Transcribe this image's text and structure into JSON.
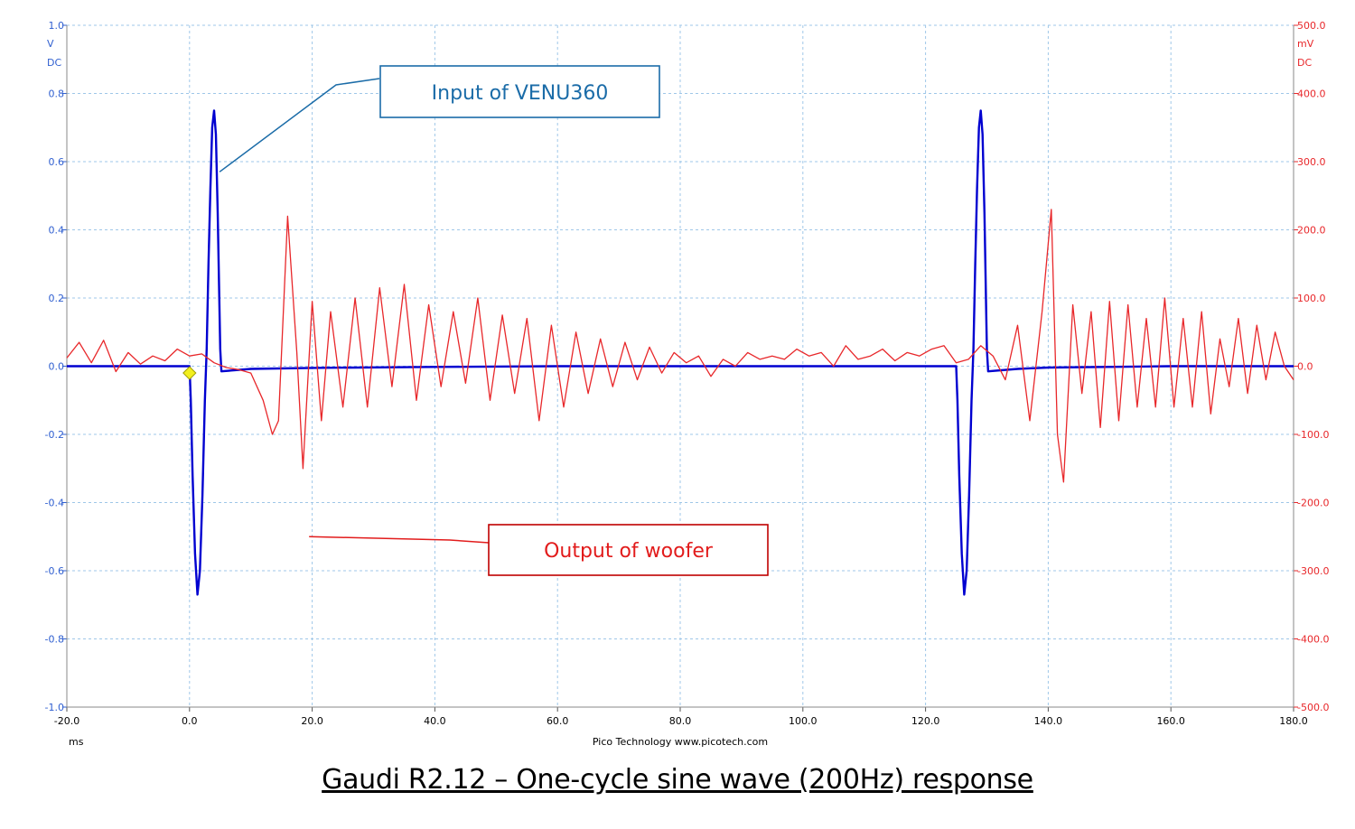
{
  "chart_data": {
    "type": "line",
    "x_axis": {
      "range": [
        -20,
        180
      ],
      "ticks": [
        -20,
        0,
        20,
        40,
        60,
        80,
        100,
        120,
        140,
        160,
        180
      ],
      "tick_labels": [
        "-20.0",
        "0.0",
        "20.0",
        "40.0",
        "60.0",
        "80.0",
        "100.0",
        "120.0",
        "140.0",
        "160.0",
        "180.0"
      ],
      "unit_label": "ms",
      "grid": true
    },
    "y_left": {
      "range": [
        -1.0,
        1.0
      ],
      "ticks": [
        1.0,
        0.8,
        0.6,
        0.4,
        0.2,
        0.0,
        -0.2,
        -0.4,
        -0.6,
        -0.8,
        -1.0
      ],
      "tick_labels": [
        "1.0",
        "0.8",
        "0.6",
        "0.4",
        "0.2",
        "0.0",
        "-0.2",
        "-0.4",
        "-0.6",
        "-0.8",
        "-1.0"
      ],
      "unit_label": "V",
      "coupling_label": "DC",
      "color": "#2f5fd0"
    },
    "y_right": {
      "range": [
        -500,
        500
      ],
      "ticks": [
        500,
        400,
        300,
        200,
        100,
        0,
        -100,
        -200,
        -300,
        -400,
        -500
      ],
      "tick_labels": [
        "500.0",
        "400.0",
        "300.0",
        "200.0",
        "100.0",
        "0.0",
        "-100.0",
        "-200.0",
        "-300.0",
        "-400.0",
        "-500.0"
      ],
      "unit_label": "mV",
      "coupling_label": "DC",
      "color": "#e8272a"
    },
    "footer_text": "Pico Technology   www.picotech.com",
    "trigger_marker": {
      "x": 0,
      "y": -0.02
    },
    "series": [
      {
        "axis": "left",
        "color": "#0000d0",
        "x": [
          -20,
          0,
          0.2,
          0.5,
          0.9,
          1.3,
          1.7,
          2.1,
          2.5,
          2.8,
          3.1,
          3.4,
          3.7,
          4.0,
          4.3,
          4.6,
          4.9,
          5.0,
          5.2,
          10,
          20,
          40,
          60,
          80,
          100,
          125,
          125.2,
          125.5,
          125.9,
          126.3,
          126.7,
          127.1,
          127.5,
          127.8,
          128.1,
          128.4,
          128.7,
          129.0,
          129.3,
          129.6,
          129.9,
          130.0,
          130.2,
          135,
          140,
          160,
          180
        ],
        "y": [
          0,
          0,
          -0.1,
          -0.32,
          -0.55,
          -0.67,
          -0.6,
          -0.38,
          -0.1,
          0.05,
          0.3,
          0.52,
          0.7,
          0.75,
          0.68,
          0.45,
          0.15,
          0.05,
          -0.015,
          -0.008,
          -0.005,
          -0.002,
          0,
          0,
          0,
          0,
          -0.1,
          -0.32,
          -0.55,
          -0.67,
          -0.6,
          -0.38,
          -0.1,
          0.05,
          0.3,
          0.52,
          0.7,
          0.75,
          0.68,
          0.45,
          0.15,
          0.05,
          -0.015,
          -0.008,
          -0.004,
          0,
          0
        ]
      },
      {
        "axis": "right",
        "color": "#e8272a",
        "x": [
          -20,
          -18,
          -16,
          -14,
          -12,
          -10,
          -8,
          -6,
          -4,
          -2,
          0,
          2,
          4,
          6,
          8,
          10,
          12,
          13.5,
          14.5,
          16,
          17.5,
          18.5,
          20,
          21.5,
          23,
          25,
          27,
          29,
          31,
          33,
          35,
          37,
          39,
          41,
          43,
          45,
          47,
          49,
          51,
          53,
          55,
          57,
          59,
          61,
          63,
          65,
          67,
          69,
          71,
          73,
          75,
          77,
          79,
          81,
          83,
          85,
          87,
          89,
          91,
          93,
          95,
          97,
          99,
          101,
          103,
          105,
          107,
          109,
          111,
          113,
          115,
          117,
          119,
          121,
          123,
          125,
          127,
          129,
          131,
          133,
          135,
          137,
          139,
          140.5,
          141.5,
          142.5,
          144,
          145.5,
          147,
          148.5,
          150,
          151.5,
          153,
          154.5,
          156,
          157.5,
          159,
          160.5,
          162,
          163.5,
          165,
          166.5,
          168,
          169.5,
          171,
          172.5,
          174,
          175.5,
          177,
          178.5,
          180
        ],
        "y": [
          12,
          35,
          5,
          38,
          -8,
          20,
          3,
          15,
          8,
          25,
          15,
          18,
          5,
          -2,
          -5,
          -10,
          -50,
          -100,
          -80,
          220,
          20,
          -150,
          95,
          -80,
          80,
          -60,
          100,
          -60,
          115,
          -30,
          120,
          -50,
          90,
          -30,
          80,
          -25,
          100,
          -50,
          75,
          -40,
          70,
          -80,
          60,
          -60,
          50,
          -40,
          40,
          -30,
          35,
          -20,
          28,
          -10,
          20,
          5,
          15,
          -15,
          10,
          0,
          20,
          10,
          15,
          10,
          25,
          15,
          20,
          0,
          30,
          10,
          15,
          25,
          8,
          20,
          15,
          25,
          30,
          5,
          10,
          30,
          15,
          -20,
          60,
          -80,
          80,
          230,
          -100,
          -170,
          90,
          -40,
          80,
          -90,
          95,
          -80,
          90,
          -60,
          70,
          -60,
          100,
          -60,
          70,
          -60,
          80,
          -70,
          40,
          -30,
          70,
          -40,
          60,
          -20,
          50,
          0,
          -20
        ]
      }
    ],
    "annotations": [
      {
        "text": "Input of VENU360",
        "color": "#1b6ca8",
        "line_color": "#1b6ca8",
        "box_border": "#1b6ca8",
        "points_to": {
          "series": 0,
          "x": 4.9,
          "y": 0.57
        }
      },
      {
        "text": "Output of woofer",
        "color": "#e21c1c",
        "line_color": "#e21c1c",
        "box_border": "#c00000",
        "points_to": {
          "series": 1,
          "x": 19.5,
          "y": -250
        }
      }
    ]
  },
  "caption": "Gaudi R2.12 – One-cycle sine wave (200Hz) response"
}
